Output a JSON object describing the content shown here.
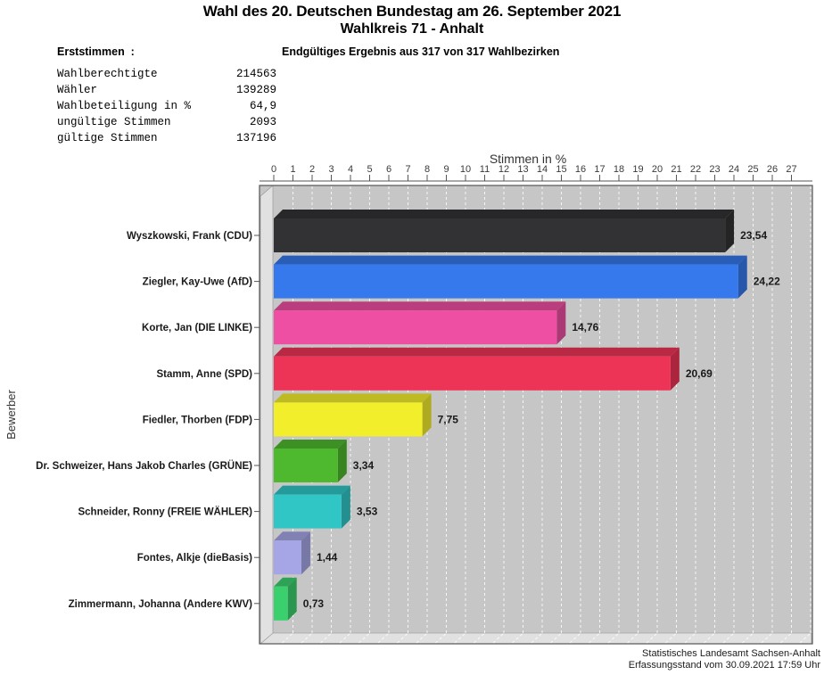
{
  "header": {
    "title": "Wahl des 20. Deutschen Bundestag am 26. September 2021",
    "subtitle": "Wahlkreis 71 - Anhalt",
    "section_label": "Erststimmen  :",
    "result_status": "Endgültiges Ergebnis aus 317 von 317 Wahlbezirken"
  },
  "summary_stats": {
    "rows": [
      {
        "label": "Wahlberechtigte",
        "value": "214563"
      },
      {
        "label": "Wähler",
        "value": "139289"
      },
      {
        "label": "Wahlbeteiligung in %",
        "value": "64,9"
      },
      {
        "label": "ungültige Stimmen",
        "value": "2093"
      },
      {
        "label": "gültige Stimmen",
        "value": "137196"
      }
    ]
  },
  "chart_data": {
    "type": "bar",
    "orientation": "horizontal",
    "title": "Stimmen in %",
    "xlabel": "Stimmen in %",
    "ylabel": "Bewerber",
    "xlim": [
      0,
      27
    ],
    "x_tick_step": 1,
    "x_ticks": [
      "0",
      "1",
      "2",
      "3",
      "4",
      "5",
      "6",
      "7",
      "8",
      "9",
      "10",
      "11",
      "12",
      "13",
      "14",
      "15",
      "16",
      "17",
      "18",
      "19",
      "20",
      "21",
      "22",
      "23",
      "24",
      "25",
      "26",
      "27"
    ],
    "grid": true,
    "grid_color": "#ffffff",
    "plot_bg": "#c6c6c6",
    "wall_color": "#e1e1e1",
    "categories": [
      "Wyszkowski, Frank (CDU)",
      "Ziegler, Kay-Uwe (AfD)",
      "Korte, Jan (DIE LINKE)",
      "Stamm, Anne (SPD)",
      "Fiedler, Thorben (FDP)",
      "Dr. Schweizer, Hans Jakob Charles (GRÜNE)",
      "Schneider, Ronny (FREIE WÄHLER)",
      "Fontes, Alkje (dieBasis)",
      "Zimmermann, Johanna (Andere KWV)"
    ],
    "values": [
      23.54,
      24.22,
      14.76,
      20.69,
      7.75,
      3.34,
      3.53,
      1.44,
      0.73
    ],
    "value_labels": [
      "23,54",
      "24,22",
      "14,76",
      "20,69",
      "7,75",
      "3,34",
      "3,53",
      "1,44",
      "0,73"
    ],
    "bar_colors": [
      "#323234",
      "#3579ec",
      "#ee4fa2",
      "#ee3456",
      "#f2ee2c",
      "#4eb82e",
      "#30c6c6",
      "#a6a6e6",
      "#3bd06e"
    ]
  },
  "footer": {
    "source": "Statistisches Landesamt Sachsen-Anhalt",
    "timestamp": "Erfassungsstand vom 30.09.2021 17:59 Uhr"
  }
}
